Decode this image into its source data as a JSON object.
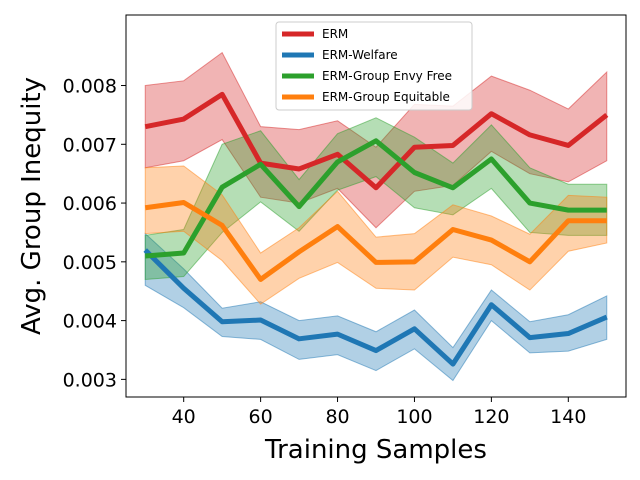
{
  "chart_data": {
    "type": "line",
    "xlabel": "Training Samples",
    "ylabel": "Avg. Group Inequity",
    "xlim": [
      25,
      155
    ],
    "ylim": [
      0.0027,
      0.0092
    ],
    "x_ticks": [
      40,
      60,
      80,
      100,
      120,
      140
    ],
    "y_ticks": [
      0.003,
      0.004,
      0.005,
      0.006,
      0.007,
      0.008
    ],
    "y_tick_labels": [
      "0.003",
      "0.004",
      "0.005",
      "0.006",
      "0.007",
      "0.008"
    ],
    "grid": false,
    "legend_position": "upper center",
    "x": [
      30,
      40,
      50,
      60,
      70,
      80,
      90,
      100,
      110,
      120,
      130,
      140,
      150
    ],
    "series": [
      {
        "name": "ERM",
        "color": "#d62728",
        "values": [
          0.0073,
          0.00743,
          0.00785,
          0.00668,
          0.00658,
          0.00683,
          0.00626,
          0.00695,
          0.00698,
          0.00752,
          0.00716,
          0.00698,
          0.0075
        ],
        "lower": [
          0.0066,
          0.00672,
          0.00708,
          0.0061,
          0.006,
          0.00625,
          0.00558,
          0.0062,
          0.0063,
          0.00688,
          0.0065,
          0.00636,
          0.00672
        ],
        "upper": [
          0.008,
          0.00808,
          0.00856,
          0.0073,
          0.00725,
          0.0074,
          0.00695,
          0.00768,
          0.00765,
          0.00816,
          0.00792,
          0.0076,
          0.00823
        ]
      },
      {
        "name": "ERM-Welfare",
        "color": "#1f77b4",
        "values": [
          0.0052,
          0.00455,
          0.00398,
          0.00401,
          0.00369,
          0.00377,
          0.00349,
          0.00386,
          0.00326,
          0.00427,
          0.00371,
          0.00378,
          0.00406
        ],
        "lower": [
          0.0046,
          0.00422,
          0.00373,
          0.00368,
          0.00334,
          0.00342,
          0.00315,
          0.00352,
          0.00298,
          0.004,
          0.00345,
          0.00348,
          0.00368
        ],
        "upper": [
          0.00548,
          0.00488,
          0.00421,
          0.00432,
          0.004,
          0.00408,
          0.00381,
          0.00418,
          0.00354,
          0.00452,
          0.00398,
          0.0041,
          0.00442
        ]
      },
      {
        "name": "ERM-Group Envy Free",
        "color": "#2ca02c",
        "values": [
          0.0051,
          0.00515,
          0.00627,
          0.00666,
          0.00594,
          0.0067,
          0.00706,
          0.00652,
          0.00626,
          0.00675,
          0.006,
          0.00588,
          0.00588
        ],
        "lower": [
          0.0047,
          0.00475,
          0.0055,
          0.00602,
          0.00552,
          0.00622,
          0.00645,
          0.00592,
          0.0058,
          0.00625,
          0.0055,
          0.00545,
          0.00545
        ],
        "upper": [
          0.00545,
          0.00555,
          0.007,
          0.00723,
          0.0064,
          0.00718,
          0.00745,
          0.00712,
          0.00668,
          0.00733,
          0.0066,
          0.00632,
          0.00632
        ]
      },
      {
        "name": "ERM-Group Equitable",
        "color": "#ff7f0e",
        "values": [
          0.00592,
          0.00601,
          0.00562,
          0.0047,
          0.00517,
          0.0056,
          0.00499,
          0.005,
          0.00555,
          0.00537,
          0.005,
          0.0057,
          0.0057
        ],
        "lower": [
          0.00548,
          0.00552,
          0.00502,
          0.00428,
          0.00472,
          0.00499,
          0.00455,
          0.00452,
          0.00508,
          0.00495,
          0.00452,
          0.00518,
          0.00532
        ],
        "upper": [
          0.0066,
          0.00663,
          0.00614,
          0.00515,
          0.00558,
          0.0062,
          0.00542,
          0.00548,
          0.00597,
          0.00578,
          0.00547,
          0.00613,
          0.0061
        ]
      }
    ]
  }
}
